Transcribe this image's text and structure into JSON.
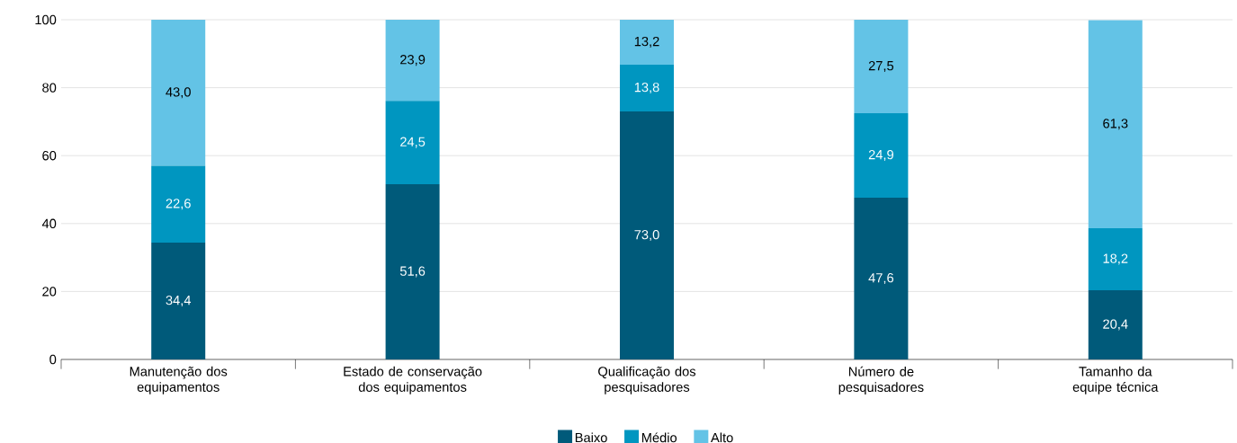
{
  "chart_data": {
    "type": "bar",
    "stacked": true,
    "categories": [
      "Manutenção dos equipamentos",
      "Estado de conservação dos equipamentos",
      "Qualificação dos pesquisadores",
      "Número de pesquisadores",
      "Tamanho da equipe técnica"
    ],
    "series": [
      {
        "name": "Baixo",
        "color": "#005a7a",
        "values": [
          34.4,
          51.6,
          73.0,
          47.6,
          20.4
        ],
        "value_labels": [
          "34,4",
          "51,6",
          "73,0",
          "47,6",
          "20,4"
        ]
      },
      {
        "name": "Médio",
        "color": "#0096c0",
        "values": [
          22.6,
          24.5,
          13.8,
          24.9,
          18.2
        ],
        "value_labels": [
          "22,6",
          "24,5",
          "13,8",
          "24,9",
          "18,2"
        ]
      },
      {
        "name": "Alto",
        "color": "#63c3e6",
        "values": [
          43.0,
          23.9,
          13.2,
          27.5,
          61.3
        ],
        "value_labels": [
          "43,0",
          "23,9",
          "13,2",
          "27,5",
          "61,3"
        ]
      }
    ],
    "ylim": [
      0,
      100
    ],
    "yticks": [
      0,
      20,
      40,
      60,
      80,
      100
    ],
    "grid": "y",
    "legend": "bottom"
  }
}
